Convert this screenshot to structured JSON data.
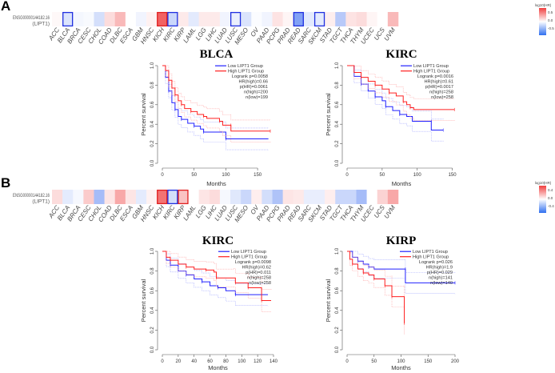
{
  "panels": [
    {
      "letter": "A",
      "heatmap": {
        "row_label_1": "ENSG00000144182.16",
        "row_label_2": "(LIPT1)",
        "legend_title": "log10(HR)",
        "legend_ticks": [
          "0.5",
          "0.0",
          "-0.5"
        ],
        "range": [
          -0.5,
          0.5
        ],
        "cancers": [
          "ACC",
          "BLCA",
          "BRCA",
          "CESC",
          "CHOL",
          "COAD",
          "DLBC",
          "ESCA",
          "GBM",
          "HNSC",
          "KICH",
          "KIRC",
          "KIRP",
          "LAML",
          "LGG",
          "LIHC",
          "LUAD",
          "LUSC",
          "MESO",
          "OV",
          "PAAD",
          "PCPG",
          "PRAD",
          "READ",
          "SARC",
          "SKCM",
          "STAD",
          "TGCT",
          "THCA",
          "THYM",
          "UCEC",
          "UCS",
          "UVM"
        ],
        "values": [
          0.02,
          -0.1,
          -0.03,
          -0.02,
          -0.12,
          0.1,
          0.2,
          0,
          -0.04,
          0.04,
          0.45,
          -0.15,
          0.06,
          -0.08,
          0.06,
          0.06,
          -0.04,
          -0.06,
          -0.1,
          -0.01,
          -0.04,
          0.08,
          0.03,
          -0.35,
          -0.08,
          -0.08,
          0.05,
          -0.2,
          0.08,
          0.1,
          0.03,
          0,
          0.2
        ],
        "significant": {
          "KICH": "high",
          "BLCA": "low",
          "KIRC": "low",
          "LUSC": "low",
          "READ": "low",
          "SKCM": "low"
        }
      }
    },
    {
      "letter": "B",
      "heatmap": {
        "row_label_1": "ENSG00000144182.16",
        "row_label_2": "(LIPT1)",
        "legend_title": "log10(HR)",
        "legend_ticks": [
          "0.4",
          "0.0",
          "-0.4"
        ],
        "range": [
          -0.4,
          0.4
        ],
        "cancers": [
          "ACC",
          "BLCA",
          "BRCA",
          "CESC",
          "CHOL",
          "COAD",
          "DLBC",
          "ESCA",
          "GBM",
          "HNSC",
          "KICH",
          "KIRC",
          "KIRP",
          "LAML",
          "LGG",
          "LIHC",
          "LUAD",
          "LUSC",
          "MESO",
          "OV",
          "PAAD",
          "PCPG",
          "PRAD",
          "READ",
          "SARC",
          "SKCM",
          "STAD",
          "TGCT",
          "THCA",
          "THYM",
          "UCEC",
          "UCS",
          "UVM"
        ],
        "values": [
          0.08,
          -0.06,
          -0.02,
          0.12,
          -0.2,
          0.06,
          0.2,
          0.06,
          -0.06,
          0.03,
          0.32,
          -0.1,
          0.14,
          0,
          0.06,
          0.08,
          -0.02,
          -0.07,
          -0.12,
          0.04,
          -0.1,
          -0.18,
          0.06,
          0.05,
          -0.05,
          -0.05,
          0.04,
          -0.12,
          -0.12,
          -0.2,
          0,
          0.1,
          0.2
        ],
        "significant": {
          "KICH": "high",
          "KIRC": "low",
          "KIRP": "high"
        }
      }
    }
  ],
  "colors": {
    "high": "#ff2020",
    "low": "#2020ff",
    "heat_high": "#f05050",
    "heat_low": "#4d79f0"
  },
  "chart_data": [
    {
      "type": "line",
      "title": "BLCA",
      "xlabel": "Months",
      "ylabel": "Percent survival",
      "xlim": [
        0,
        170
      ],
      "ylim": [
        0,
        1
      ],
      "xticks": [
        0,
        50,
        100,
        150
      ],
      "yticks": [
        0.0,
        0.2,
        0.4,
        0.6,
        0.8,
        1.0
      ],
      "legend": [
        "Low LIPT1 Group",
        "High LIPT1 Group"
      ],
      "stats": [
        "Logrank p=0.0058",
        "HR(high)=0.66",
        "p(HR)=0.0061",
        "n(high)=200",
        "n(low)=199"
      ],
      "series": [
        {
          "name": "Low LIPT1 Group",
          "points": [
            [
              0,
              1
            ],
            [
              5,
              0.88
            ],
            [
              10,
              0.74
            ],
            [
              15,
              0.62
            ],
            [
              20,
              0.55
            ],
            [
              25,
              0.48
            ],
            [
              30,
              0.45
            ],
            [
              40,
              0.41
            ],
            [
              50,
              0.38
            ],
            [
              60,
              0.35
            ],
            [
              65,
              0.32
            ],
            [
              100,
              0.32
            ],
            [
              100,
              0.25
            ],
            [
              167,
              0.25
            ]
          ]
        },
        {
          "name": "High LIPT1 Group",
          "points": [
            [
              0,
              1
            ],
            [
              5,
              0.95
            ],
            [
              10,
              0.85
            ],
            [
              15,
              0.77
            ],
            [
              20,
              0.7
            ],
            [
              25,
              0.64
            ],
            [
              30,
              0.6
            ],
            [
              35,
              0.56
            ],
            [
              45,
              0.53
            ],
            [
              55,
              0.5
            ],
            [
              65,
              0.48
            ],
            [
              70,
              0.46
            ],
            [
              90,
              0.43
            ],
            [
              95,
              0.39
            ],
            [
              108,
              0.39
            ],
            [
              108,
              0.33
            ],
            [
              170,
              0.33
            ]
          ]
        }
      ]
    },
    {
      "type": "line",
      "title": "KIRC",
      "xlabel": "Months",
      "ylabel": "Percent survival",
      "xlim": [
        0,
        155
      ],
      "ylim": [
        0,
        1
      ],
      "xticks": [
        0,
        50,
        100,
        150
      ],
      "yticks": [
        0.0,
        0.2,
        0.4,
        0.6,
        0.8,
        1.0
      ],
      "legend": [
        "Low LIPT1 Group",
        "High LIPT1 Group"
      ],
      "stats": [
        "Logrank p=0.0016",
        "HR(high)=0.61",
        "p(HR)=0.0017",
        "n(high)=258",
        "n(low)=258"
      ],
      "series": [
        {
          "name": "Low LIPT1 Group",
          "points": [
            [
              0,
              1
            ],
            [
              10,
              0.89
            ],
            [
              20,
              0.81
            ],
            [
              30,
              0.74
            ],
            [
              40,
              0.68
            ],
            [
              50,
              0.64
            ],
            [
              55,
              0.58
            ],
            [
              65,
              0.54
            ],
            [
              75,
              0.5
            ],
            [
              85,
              0.48
            ],
            [
              93,
              0.46
            ],
            [
              93,
              0.43
            ],
            [
              120,
              0.43
            ],
            [
              120,
              0.34
            ],
            [
              137,
              0.34
            ]
          ]
        },
        {
          "name": "High LIPT1 Group",
          "points": [
            [
              0,
              1
            ],
            [
              10,
              0.93
            ],
            [
              20,
              0.88
            ],
            [
              30,
              0.84
            ],
            [
              40,
              0.8
            ],
            [
              50,
              0.76
            ],
            [
              60,
              0.72
            ],
            [
              70,
              0.69
            ],
            [
              80,
              0.63
            ],
            [
              85,
              0.6
            ],
            [
              90,
              0.57
            ],
            [
              95,
              0.55
            ],
            [
              153,
              0.55
            ]
          ]
        }
      ]
    },
    {
      "type": "line",
      "title": "KIRC",
      "xlabel": "Months",
      "ylabel": "Percent survival",
      "xlim": [
        0,
        140
      ],
      "ylim": [
        0,
        1
      ],
      "xticks": [
        0,
        20,
        40,
        60,
        80,
        100,
        120,
        140
      ],
      "yticks": [
        0.0,
        0.2,
        0.4,
        0.6,
        0.8,
        1.0
      ],
      "legend": [
        "Low LIPT1 Group",
        "High LIPT1 Group"
      ],
      "stats": [
        "Logrank p=0.0098",
        "HR(high)=0.62",
        "p(HR)=0.011",
        "n(high)=258",
        "n(low)=258"
      ],
      "series": [
        {
          "name": "Low LIPT1 Group",
          "points": [
            [
              0,
              1
            ],
            [
              5,
              0.91
            ],
            [
              10,
              0.86
            ],
            [
              20,
              0.8
            ],
            [
              30,
              0.76
            ],
            [
              40,
              0.72
            ],
            [
              50,
              0.69
            ],
            [
              60,
              0.65
            ],
            [
              70,
              0.63
            ],
            [
              80,
              0.6
            ],
            [
              92,
              0.56
            ],
            [
              133,
              0.56
            ]
          ]
        },
        {
          "name": "High LIPT1 Group",
          "points": [
            [
              0,
              1
            ],
            [
              5,
              0.94
            ],
            [
              10,
              0.91
            ],
            [
              20,
              0.87
            ],
            [
              30,
              0.84
            ],
            [
              40,
              0.82
            ],
            [
              55,
              0.81
            ],
            [
              65,
              0.79
            ],
            [
              68,
              0.73
            ],
            [
              90,
              0.73
            ],
            [
              92,
              0.68
            ],
            [
              108,
              0.68
            ],
            [
              108,
              0.63
            ],
            [
              125,
              0.63
            ],
            [
              125,
              0.5
            ],
            [
              137,
              0.5
            ]
          ]
        }
      ]
    },
    {
      "type": "line",
      "title": "KIRP",
      "xlabel": "Months",
      "ylabel": "Percent survival",
      "xlim": [
        0,
        200
      ],
      "ylim": [
        0,
        1
      ],
      "xticks": [
        0,
        50,
        100,
        150,
        200
      ],
      "yticks": [
        0.0,
        0.2,
        0.4,
        0.6,
        0.8,
        1.0
      ],
      "legend": [
        "Low LIPT1 Group",
        "High LIPT1 Group"
      ],
      "stats": [
        "Logrank p=0.026",
        "HR(high)=1.9",
        "p(HR)=0.029",
        "n(high)=141",
        "n(low)=140"
      ],
      "series": [
        {
          "name": "Low LIPT1 Group",
          "points": [
            [
              0,
              1
            ],
            [
              10,
              0.94
            ],
            [
              20,
              0.9
            ],
            [
              30,
              0.87
            ],
            [
              40,
              0.84
            ],
            [
              50,
              0.82
            ],
            [
              108,
              0.82
            ],
            [
              108,
              0.68
            ],
            [
              200,
              0.68
            ]
          ]
        },
        {
          "name": "High LIPT1 Group",
          "points": [
            [
              0,
              1
            ],
            [
              5,
              0.92
            ],
            [
              10,
              0.87
            ],
            [
              20,
              0.82
            ],
            [
              30,
              0.78
            ],
            [
              40,
              0.76
            ],
            [
              50,
              0.72
            ],
            [
              70,
              0.72
            ],
            [
              70,
              0.65
            ],
            [
              83,
              0.65
            ],
            [
              83,
              0.54
            ],
            [
              106,
              0.54
            ],
            [
              106,
              0.27
            ]
          ]
        }
      ]
    }
  ]
}
